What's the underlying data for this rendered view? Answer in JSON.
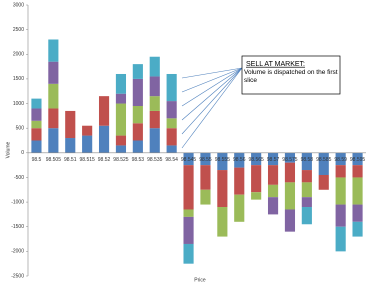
{
  "chart_data": {
    "type": "stacked-bar",
    "annotation": {
      "title": "SELL AT MARKET:",
      "text": "Volume is dispatched on the first slice"
    },
    "xlabel": "Price",
    "ylabel": "Volume",
    "categories": [
      "98.5",
      "98.505",
      "98.51",
      "98.515",
      "98.52",
      "98.525",
      "98.53",
      "98.535",
      "98.54",
      "98.545",
      "98.55",
      "98.555",
      "98.56",
      "98.565",
      "98.57",
      "98.575",
      "98.58",
      "98.585",
      "98.59",
      "98.595"
    ],
    "series": [
      {
        "color": "#4f81bd",
        "values": [
          250,
          500,
          300,
          350,
          550,
          150,
          250,
          500,
          150,
          -250,
          -250,
          -350,
          -300,
          -250,
          -250,
          -200,
          -350,
          -450,
          -250,
          -250
        ]
      },
      {
        "color": "#c0504d",
        "values": [
          250,
          400,
          550,
          200,
          600,
          200,
          350,
          350,
          350,
          -900,
          -500,
          -750,
          -550,
          -550,
          -400,
          -400,
          -250,
          -300,
          -250,
          -250
        ]
      },
      {
        "color": "#9bbb59",
        "values": [
          150,
          500,
          0,
          0,
          0,
          650,
          350,
          300,
          200,
          -150,
          -300,
          -600,
          -550,
          -150,
          -250,
          -550,
          -300,
          0,
          -550,
          -550
        ]
      },
      {
        "color": "#8064a2",
        "values": [
          250,
          450,
          0,
          0,
          0,
          200,
          550,
          400,
          350,
          -550,
          0,
          0,
          0,
          0,
          -350,
          -450,
          -200,
          0,
          -450,
          -350
        ]
      },
      {
        "color": "#4bacc6",
        "values": [
          200,
          450,
          0,
          0,
          0,
          400,
          300,
          400,
          550,
          -400,
          0,
          0,
          0,
          0,
          0,
          0,
          -350,
          0,
          -500,
          -300
        ]
      }
    ],
    "ylim": [
      -2500,
      3000
    ],
    "yticks": [
      -2500,
      -2000,
      -1500,
      -1000,
      -500,
      0,
      500,
      1000,
      1500,
      2000,
      2500,
      3000
    ],
    "grid": false
  }
}
